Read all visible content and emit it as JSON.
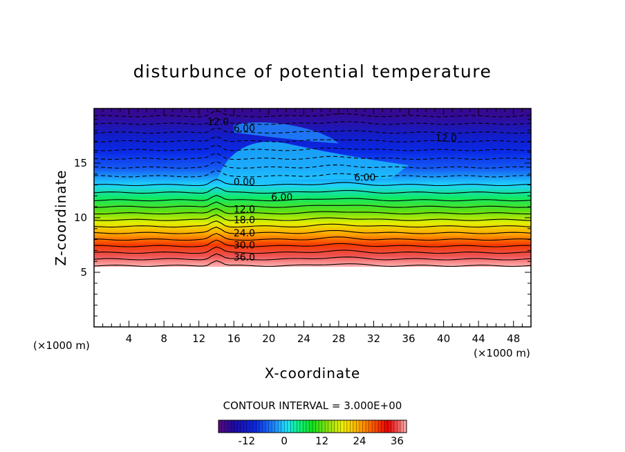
{
  "chart_data": {
    "type": "heatmap",
    "title": "disturbunce of potential temperature",
    "xlabel": "X-coordinate",
    "ylabel": "Z-coordinate",
    "x_unit_left": "(×1000 m)",
    "x_unit_right": "(×1000 m)",
    "xlim": [
      0,
      50
    ],
    "ylim": [
      0,
      20
    ],
    "x_ticks": [
      4,
      8,
      12,
      16,
      20,
      24,
      28,
      32,
      36,
      40,
      44,
      48
    ],
    "y_ticks": [
      5,
      10,
      15
    ],
    "contour_interval_text": "CONTOUR INTERVAL = 3.000E+00",
    "colorbar": {
      "range": [
        -21,
        39
      ],
      "ticks": [
        -12,
        0,
        12,
        24,
        36
      ]
    },
    "field_description_levels": [
      {
        "z": 5.5,
        "value": 39
      },
      {
        "z": 6.5,
        "value": 36
      },
      {
        "z": 7.5,
        "value": 30
      },
      {
        "z": 8.5,
        "value": 24
      },
      {
        "z": 9.5,
        "value": 18
      },
      {
        "z": 10.6,
        "value": 12
      },
      {
        "z": 11.8,
        "value": 6
      },
      {
        "z": 13.0,
        "value": 0
      },
      {
        "z": 14.5,
        "value": -6
      },
      {
        "z": 16.0,
        "value": -9
      },
      {
        "z": 17.5,
        "value": -12
      },
      {
        "z": 19.5,
        "value": -18
      }
    ],
    "contour_labels": [
      {
        "text": "12.0",
        "x": 14.2,
        "y": 18.8
      },
      {
        "text": "6.00",
        "x": 17.2,
        "y": 18.2
      },
      {
        "text": "12.0",
        "x": 40.3,
        "y": 17.3
      },
      {
        "text": "6.00",
        "x": 31.0,
        "y": 13.7
      },
      {
        "text": "0.00",
        "x": 17.2,
        "y": 13.3
      },
      {
        "text": "6.00",
        "x": 21.5,
        "y": 11.9
      },
      {
        "text": "12.0",
        "x": 17.2,
        "y": 10.8
      },
      {
        "text": "18.0",
        "x": 17.2,
        "y": 9.8
      },
      {
        "text": "24.0",
        "x": 17.2,
        "y": 8.6
      },
      {
        "text": "30.0",
        "x": 17.2,
        "y": 7.5
      },
      {
        "text": "36.0",
        "x": 17.2,
        "y": 6.4
      }
    ]
  }
}
